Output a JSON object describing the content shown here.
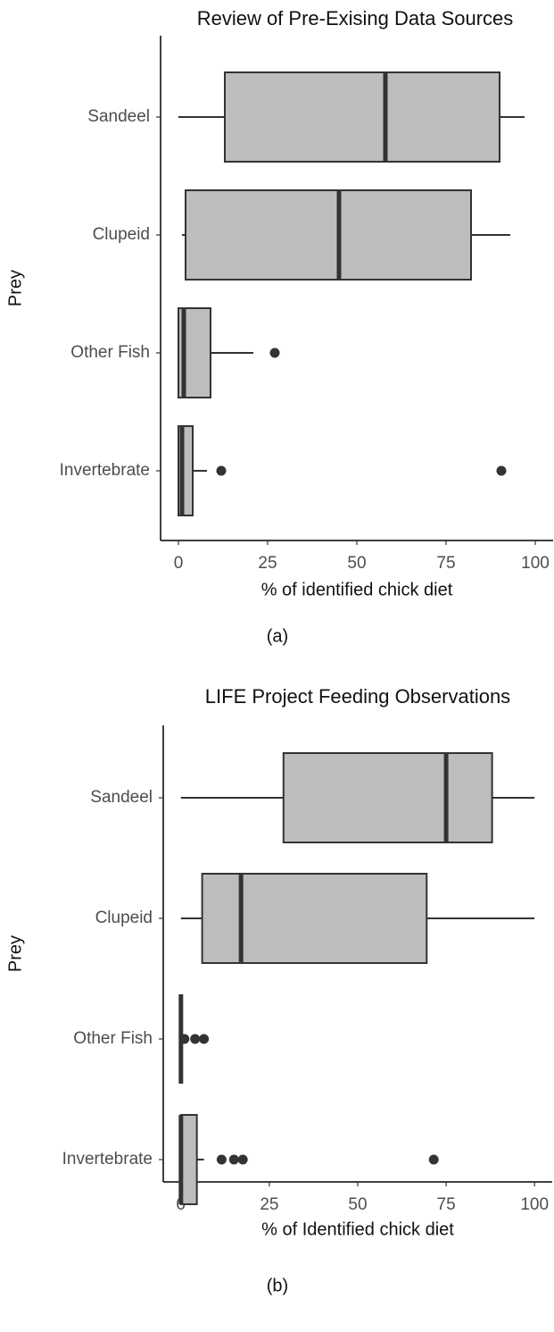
{
  "chart_data": [
    {
      "type": "box",
      "title": "Review of Pre-Exising Data Sources",
      "xlabel": "% of identified chick diet",
      "ylabel": "Prey",
      "caption": "(a)",
      "categories": [
        "Sandeel",
        "Clupeid",
        "Other Fish",
        "Invertebrate"
      ],
      "boxes": [
        {
          "min": 0,
          "q1": 13,
          "median": 58,
          "q3": 90,
          "max": 97,
          "outliers": []
        },
        {
          "min": 1,
          "q1": 2,
          "median": 45,
          "q3": 82,
          "max": 93,
          "outliers": []
        },
        {
          "min": 0,
          "q1": 0,
          "median": 1.5,
          "q3": 9,
          "max": 21,
          "outliers": [
            27
          ]
        },
        {
          "min": 0,
          "q1": 0,
          "median": 1,
          "q3": 4,
          "max": 8,
          "outliers": [
            12,
            90.5
          ]
        }
      ],
      "color": "#bdbdbd",
      "xlim": [
        -5,
        105
      ],
      "xticks": [
        0,
        25,
        50,
        75,
        100
      ]
    },
    {
      "type": "box",
      "title": "LIFE Project Feeding Observations",
      "xlabel": "% of Identified chick diet",
      "ylabel": "Prey",
      "caption": "(b)",
      "categories": [
        "Sandeel",
        "Clupeid",
        "Other Fish",
        "Invertebrate"
      ],
      "boxes": [
        {
          "min": 0,
          "q1": 29,
          "median": 75,
          "q3": 88,
          "max": 100,
          "outliers": []
        },
        {
          "min": 0,
          "q1": 6,
          "median": 17,
          "q3": 69.5,
          "max": 100,
          "outliers": []
        },
        {
          "min": 0,
          "q1": 0,
          "median": 0,
          "q3": 0,
          "max": 0,
          "outliers": [
            1,
            4,
            6.5
          ]
        },
        {
          "min": 0,
          "q1": 0,
          "median": 0,
          "q3": 4.5,
          "max": 6.5,
          "outliers": [
            11.5,
            15,
            17.5,
            71.5
          ]
        }
      ],
      "color": "#bdbdbd",
      "xlim": [
        -5,
        105
      ],
      "xticks": [
        0,
        25,
        50,
        75,
        100
      ]
    }
  ]
}
